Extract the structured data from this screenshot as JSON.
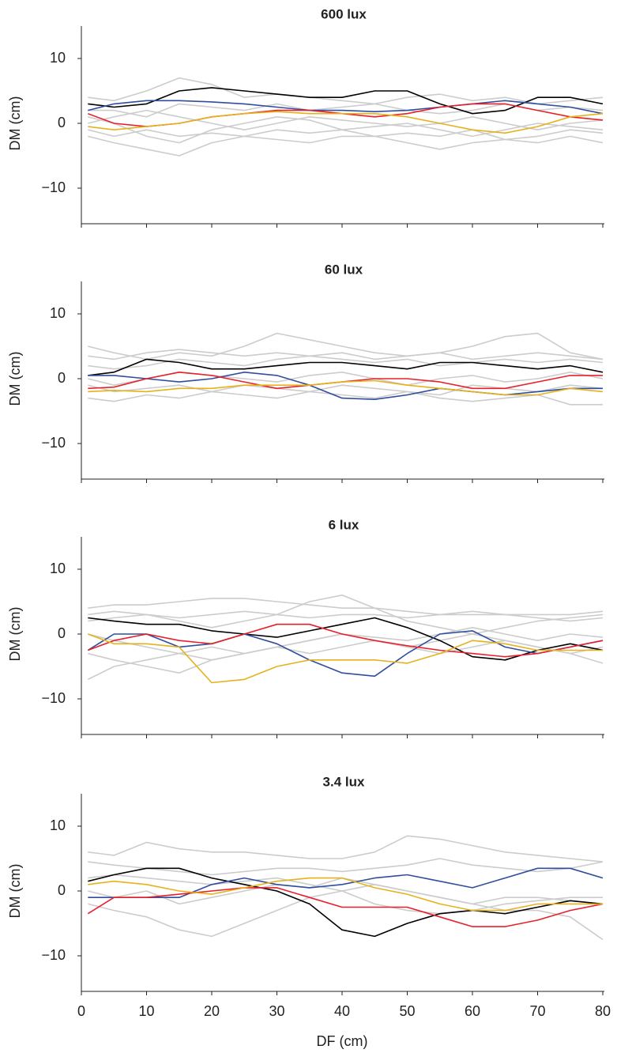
{
  "chart_data": [
    {
      "type": "line",
      "title": "600 lux",
      "ylabel": "DM (cm)",
      "x": [
        1,
        5,
        10,
        15,
        20,
        25,
        30,
        35,
        40,
        45,
        50,
        55,
        60,
        65,
        70,
        75,
        80
      ],
      "xlim": [
        0,
        80
      ],
      "xticks": [
        0,
        10,
        20,
        30,
        40,
        50,
        60,
        70,
        80
      ],
      "ylim": [
        -15,
        15
      ],
      "yticks": [
        {
          "value": -10,
          "label": "−10"
        },
        0,
        10
      ],
      "series": [
        {
          "color": "#cccccc",
          "values": [
            4,
            3.5,
            5,
            7,
            6,
            4,
            4.5,
            4,
            3.5,
            3,
            4,
            4.5,
            3.5,
            4,
            3,
            3.5,
            4
          ]
        },
        {
          "color": "#cccccc",
          "values": [
            -2,
            -3,
            -4,
            -5,
            -3,
            -2,
            -2.5,
            -3,
            -2,
            -2,
            -3,
            -4,
            -3,
            -2.5,
            -3,
            -2,
            -3
          ]
        },
        {
          "color": "#cccccc",
          "values": [
            0,
            1,
            2,
            1,
            0,
            -1,
            0,
            1,
            0.5,
            0,
            -0.5,
            0,
            1,
            0,
            -1,
            0,
            0.5
          ]
        },
        {
          "color": "#cccccc",
          "values": [
            2,
            2,
            1,
            3,
            2.5,
            2,
            3,
            2,
            2.5,
            3,
            2,
            1.5,
            2,
            3,
            2,
            2.5,
            2
          ]
        },
        {
          "color": "#cccccc",
          "values": [
            -1,
            -2,
            -1,
            -2,
            -1.5,
            -2,
            -1,
            -1.5,
            -1,
            -2,
            -1.5,
            -2,
            -1,
            -2.5,
            -2,
            -1,
            -1.5
          ]
        },
        {
          "color": "#cccccc",
          "values": [
            1,
            0,
            -2,
            -3,
            -1,
            0,
            1,
            0.5,
            -1,
            -0.5,
            0,
            -1,
            -2,
            -1,
            0,
            -0.5,
            -1
          ]
        },
        {
          "color": "#000000",
          "values": [
            3,
            2.5,
            3,
            5,
            5.5,
            5,
            4.5,
            4,
            4,
            5,
            5,
            3,
            1.5,
            2,
            4,
            4,
            3
          ]
        },
        {
          "color": "#2f4e9e",
          "values": [
            2,
            3,
            3.5,
            3.5,
            3.3,
            3,
            2.5,
            2,
            2,
            1.8,
            2,
            2.5,
            3,
            3.5,
            3,
            2.5,
            1.5
          ]
        },
        {
          "color": "#e8202a",
          "values": [
            1.5,
            0,
            -0.5,
            0,
            1,
            1.5,
            2,
            2,
            1.5,
            1,
            1.5,
            2.5,
            3,
            3,
            2,
            1,
            0.5
          ]
        },
        {
          "color": "#e6b21c",
          "values": [
            -0.5,
            -1,
            -0.5,
            0,
            1,
            1.5,
            1.8,
            1.5,
            1.5,
            1.5,
            1,
            0,
            -1,
            -1.5,
            -0.5,
            1,
            1.5
          ]
        }
      ]
    },
    {
      "type": "line",
      "title": "60 lux",
      "ylabel": "DM (cm)",
      "x": [
        1,
        5,
        10,
        15,
        20,
        25,
        30,
        35,
        40,
        45,
        50,
        55,
        60,
        65,
        70,
        75,
        80
      ],
      "xlim": [
        0,
        80
      ],
      "xticks": [
        0,
        10,
        20,
        30,
        40,
        50,
        60,
        70,
        80
      ],
      "ylim": [
        -15,
        15
      ],
      "yticks": [
        {
          "value": -10,
          "label": "−10"
        },
        0,
        10
      ],
      "series": [
        {
          "color": "#cccccc",
          "values": [
            5,
            4,
            3,
            4,
            3.5,
            5,
            7,
            6,
            5,
            4,
            3.5,
            4,
            5,
            6.5,
            7,
            4,
            3
          ]
        },
        {
          "color": "#cccccc",
          "values": [
            -3,
            -3.5,
            -2.5,
            -3,
            -2,
            -2.5,
            -3,
            -2,
            -2.5,
            -3,
            -2,
            -3,
            -3.5,
            -3,
            -2.5,
            -4,
            -4
          ]
        },
        {
          "color": "#cccccc",
          "values": [
            2,
            1.5,
            2,
            3,
            2.5,
            2,
            3,
            3.5,
            3,
            2.5,
            3,
            2,
            2.5,
            3,
            2.5,
            3,
            2.5
          ]
        },
        {
          "color": "#cccccc",
          "values": [
            0,
            -1,
            0,
            1,
            0.5,
            0,
            -0.5,
            0.5,
            1,
            0,
            -1,
            0,
            0.5,
            -0.5,
            0,
            1,
            0
          ]
        },
        {
          "color": "#cccccc",
          "values": [
            -1,
            -2,
            -1.5,
            -1,
            -2,
            -1,
            -1.5,
            -2,
            -1,
            -1.5,
            -2,
            -2.5,
            -1,
            -1.5,
            -2,
            -1,
            -1.5
          ]
        },
        {
          "color": "#cccccc",
          "values": [
            3.5,
            3,
            4,
            4.5,
            4,
            3.5,
            4,
            3.5,
            4,
            3,
            3.5,
            4,
            3,
            3.5,
            4,
            3.5,
            3
          ]
        },
        {
          "color": "#000000",
          "values": [
            0.5,
            1,
            3,
            2.5,
            1.5,
            1.5,
            2,
            2.5,
            2.5,
            2,
            1.5,
            2.5,
            2.5,
            2,
            1.5,
            2,
            1
          ]
        },
        {
          "color": "#2f4e9e",
          "values": [
            0.5,
            0.5,
            0,
            -0.5,
            0,
            1,
            0.5,
            -1,
            -3,
            -3.2,
            -2.5,
            -1.5,
            -2,
            -2.5,
            -2,
            -1.5,
            -1.5
          ]
        },
        {
          "color": "#e8202a",
          "values": [
            -1.5,
            -1.3,
            0,
            1,
            0.5,
            -0.5,
            -1.5,
            -1,
            -0.5,
            0,
            0,
            -0.5,
            -1.5,
            -1.5,
            -0.5,
            0.5,
            0.5
          ]
        },
        {
          "color": "#e6b21c",
          "values": [
            -2,
            -1.8,
            -2,
            -1.5,
            -1.5,
            -1,
            -1,
            -1,
            -0.5,
            -0.3,
            -1,
            -1.5,
            -2,
            -2.5,
            -2.5,
            -1.5,
            -2
          ]
        }
      ]
    },
    {
      "type": "line",
      "title": "6 lux",
      "ylabel": "DM (cm)",
      "x": [
        1,
        5,
        10,
        15,
        20,
        25,
        30,
        35,
        40,
        45,
        50,
        55,
        60,
        65,
        70,
        75,
        80
      ],
      "xlim": [
        0,
        80
      ],
      "xticks": [
        0,
        10,
        20,
        30,
        40,
        50,
        60,
        70,
        80
      ],
      "ylim": [
        -15,
        15
      ],
      "yticks": [
        {
          "value": -10,
          "label": "−10"
        },
        0,
        10
      ],
      "series": [
        {
          "color": "#cccccc",
          "values": [
            4,
            4.5,
            4.5,
            5,
            5.5,
            5.5,
            5,
            4.5,
            4,
            4,
            3.5,
            3,
            3,
            3,
            3,
            3,
            3.5
          ]
        },
        {
          "color": "#cccccc",
          "values": [
            -7,
            -5,
            -4,
            -3,
            -2,
            -3,
            -2,
            -1,
            0,
            -1,
            -2,
            -1,
            0,
            -1,
            -2,
            -3,
            -4.5
          ]
        },
        {
          "color": "#cccccc",
          "values": [
            2,
            2.5,
            3,
            2,
            1,
            2,
            3,
            5,
            6,
            4,
            2,
            1,
            0,
            1,
            2,
            2.5,
            3
          ]
        },
        {
          "color": "#cccccc",
          "values": [
            0,
            -1,
            -2,
            -3,
            -4,
            -3,
            -2,
            -3,
            -2,
            -1,
            -2,
            -3,
            -2,
            -1,
            -2,
            -3,
            -2
          ]
        },
        {
          "color": "#cccccc",
          "values": [
            -3,
            -4,
            -5,
            -6,
            -4,
            -3,
            -2,
            -1,
            0,
            -0.5,
            -1,
            0,
            1,
            0,
            -1,
            0,
            -0.5
          ]
        },
        {
          "color": "#cccccc",
          "values": [
            3,
            3.5,
            3,
            2.5,
            3,
            3.5,
            3,
            2.5,
            3,
            3,
            2.5,
            3,
            3.5,
            3,
            2.5,
            2,
            2.5
          ]
        },
        {
          "color": "#000000",
          "values": [
            2.5,
            2,
            1.5,
            1.5,
            0.5,
            0,
            -0.5,
            0.5,
            1.5,
            2.5,
            1,
            -1,
            -3.5,
            -4,
            -2.5,
            -1.5,
            -2.5
          ]
        },
        {
          "color": "#2f4e9e",
          "values": [
            -2.5,
            0,
            0,
            -2,
            -1.5,
            0,
            -1.5,
            -4,
            -6,
            -6.5,
            -3,
            0,
            0.5,
            -2,
            -3,
            -2,
            -1
          ]
        },
        {
          "color": "#e8202a",
          "values": [
            -2.5,
            -1,
            0,
            -1,
            -1.5,
            0,
            1.5,
            1.5,
            0,
            -1,
            -1.8,
            -2.5,
            -3,
            -3.5,
            -3,
            -2,
            -1
          ]
        },
        {
          "color": "#e6b21c",
          "values": [
            0,
            -1.5,
            -1.5,
            -2,
            -7.5,
            -7,
            -5,
            -4,
            -4,
            -4,
            -4.5,
            -3,
            -1,
            -1.5,
            -2.5,
            -2.5,
            -2.5
          ]
        }
      ]
    },
    {
      "type": "line",
      "title": "3.4 lux",
      "ylabel": "DM (cm)",
      "xlabel": "DF (cm)",
      "x": [
        1,
        5,
        10,
        15,
        20,
        25,
        30,
        35,
        40,
        45,
        50,
        55,
        60,
        65,
        70,
        75,
        80
      ],
      "xlim": [
        0,
        80
      ],
      "xticks": [
        0,
        10,
        20,
        30,
        40,
        50,
        60,
        70,
        80
      ],
      "ylim": [
        -15,
        15
      ],
      "yticks": [
        {
          "value": -10,
          "label": "−10"
        },
        0,
        10
      ],
      "series": [
        {
          "color": "#cccccc",
          "values": [
            6,
            5.5,
            7.5,
            6.5,
            6,
            6,
            5.5,
            5,
            5,
            6,
            8.5,
            8,
            7,
            6,
            5.5,
            5,
            4.5
          ]
        },
        {
          "color": "#cccccc",
          "values": [
            4.5,
            4,
            3.5,
            3,
            2.5,
            3,
            3.5,
            3.5,
            3,
            3.5,
            4,
            5,
            4,
            3.5,
            3,
            3.5,
            4.5
          ]
        },
        {
          "color": "#cccccc",
          "values": [
            -2,
            -3,
            -4,
            -6,
            -7,
            -5,
            -3,
            -1,
            0,
            1,
            0,
            -1,
            -2,
            -3,
            -3,
            -4,
            -7.5
          ]
        },
        {
          "color": "#cccccc",
          "values": [
            0,
            -1,
            0,
            -2,
            -1,
            0,
            1,
            0.5,
            2,
            1,
            0,
            -1,
            -2,
            -1,
            -1,
            -1.5,
            -2
          ]
        },
        {
          "color": "#cccccc",
          "values": [
            2,
            2.5,
            2,
            1.5,
            1,
            1.5,
            2,
            1,
            0,
            -2,
            -3,
            -3.5,
            -3,
            -2,
            -1.5,
            -1,
            -1
          ]
        },
        {
          "color": "#000000",
          "values": [
            1.5,
            2.5,
            3.5,
            3.5,
            2,
            1,
            0,
            -2,
            -6,
            -7,
            -5,
            -3.5,
            -3,
            -3.5,
            -2.5,
            -1.5,
            -2
          ]
        },
        {
          "color": "#2f4e9e",
          "values": [
            -1,
            -1,
            -1,
            -1,
            1,
            2,
            1,
            0.5,
            1,
            2,
            2.5,
            1.5,
            0.5,
            2,
            3.5,
            3.5,
            2
          ]
        },
        {
          "color": "#e8202a",
          "values": [
            -3.5,
            -1,
            -1,
            -0.5,
            0,
            0.5,
            0.5,
            -1,
            -2.5,
            -2.5,
            -2.5,
            -4,
            -5.5,
            -5.5,
            -4.5,
            -3,
            -2
          ]
        },
        {
          "color": "#e6b21c",
          "values": [
            1,
            1.5,
            1,
            0,
            -0.5,
            0.5,
            1.5,
            2,
            2,
            0.5,
            -0.5,
            -2,
            -3,
            -3,
            -2,
            -2,
            -2
          ]
        }
      ]
    }
  ]
}
